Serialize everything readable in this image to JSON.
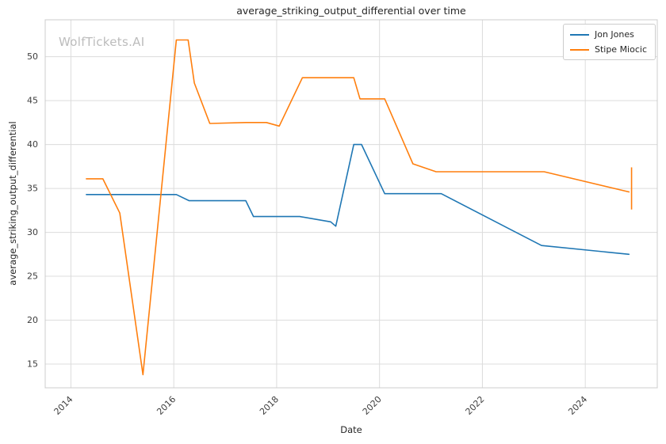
{
  "watermark": {
    "text": "WolfTickets.AI",
    "color": "#bcbcbc"
  },
  "chart_data": {
    "type": "line",
    "title": "average_striking_output_differential over time",
    "xlabel": "Date",
    "ylabel": "average_striking_output_differential",
    "xlim": [
      2013.5,
      2025.4
    ],
    "ylim": [
      12.3,
      54.2
    ],
    "xticks": [
      2014,
      2016,
      2018,
      2020,
      2022,
      2024
    ],
    "yticks": [
      15,
      20,
      25,
      30,
      35,
      40,
      45,
      50
    ],
    "grid": true,
    "grid_color": "#dcdcdc",
    "axis_color": "#cccccc",
    "legend_position": "upper right",
    "series": [
      {
        "name": "Jon Jones",
        "color": "#1f77b4",
        "x": [
          2014.3,
          2014.75,
          2015.3,
          2016.05,
          2016.3,
          2017.4,
          2017.55,
          2018.45,
          2019.05,
          2019.15,
          2019.5,
          2019.65,
          2020.1,
          2021.2,
          2023.15,
          2024.85
        ],
        "y": [
          34.3,
          34.3,
          34.3,
          34.3,
          33.6,
          33.6,
          31.8,
          31.8,
          31.2,
          30.7,
          40.0,
          40.0,
          34.4,
          34.4,
          28.5,
          27.5
        ]
      },
      {
        "name": "Stipe Miocic",
        "color": "#ff7f0e",
        "x": [
          2014.3,
          2014.62,
          2014.95,
          2015.4,
          2016.05,
          2016.28,
          2016.4,
          2016.7,
          2017.4,
          2017.8,
          2018.05,
          2018.5,
          2019.5,
          2019.62,
          2020.1,
          2020.65,
          2021.1,
          2023.2,
          2024.85
        ],
        "y": [
          36.1,
          36.1,
          32.2,
          13.8,
          51.9,
          51.9,
          47.0,
          42.4,
          42.5,
          42.5,
          42.1,
          47.6,
          47.6,
          45.2,
          45.2,
          37.8,
          36.9,
          36.9,
          34.6
        ],
        "end_cap": {
          "x": 2024.9,
          "from": 32.6,
          "to": 37.4
        }
      }
    ]
  }
}
